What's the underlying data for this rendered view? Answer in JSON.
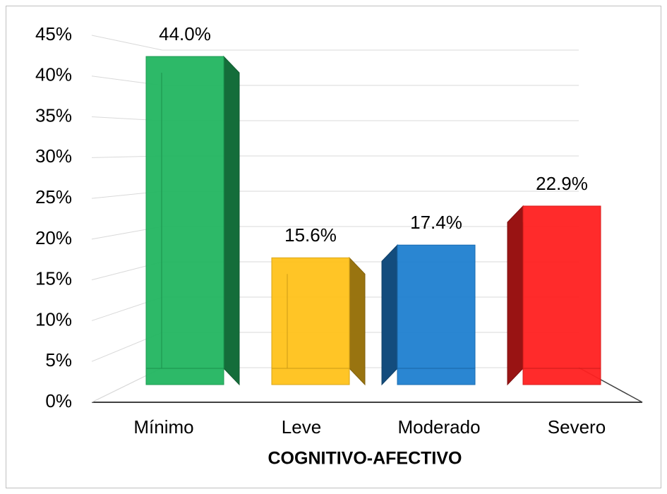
{
  "chart_data": {
    "type": "bar3d",
    "x_label": "COGNITIVO-AFECTIVO",
    "categories": [
      "Mínimo",
      "Leve",
      "Moderado",
      "Severo"
    ],
    "values": [
      44.0,
      15.6,
      17.4,
      22.9
    ],
    "value_labels": [
      "44.0%",
      "15.6%",
      "17.4%",
      "22.9%"
    ],
    "colors": [
      "#22b560",
      "#ffc21a",
      "#1f7fd0",
      "#ff2020"
    ],
    "ylim": [
      0,
      45
    ],
    "yticks": [
      {
        "value": 0,
        "label": "0%"
      },
      {
        "value": 5,
        "label": "5%"
      },
      {
        "value": 10,
        "label": "10%"
      },
      {
        "value": 15,
        "label": "15%"
      },
      {
        "value": 20,
        "label": "20%"
      },
      {
        "value": 25,
        "label": "25%"
      },
      {
        "value": 30,
        "label": "30%"
      },
      {
        "value": 35,
        "label": "35%"
      },
      {
        "value": 40,
        "label": "40%"
      },
      {
        "value": 45,
        "label": "45%"
      }
    ],
    "grid": true
  }
}
